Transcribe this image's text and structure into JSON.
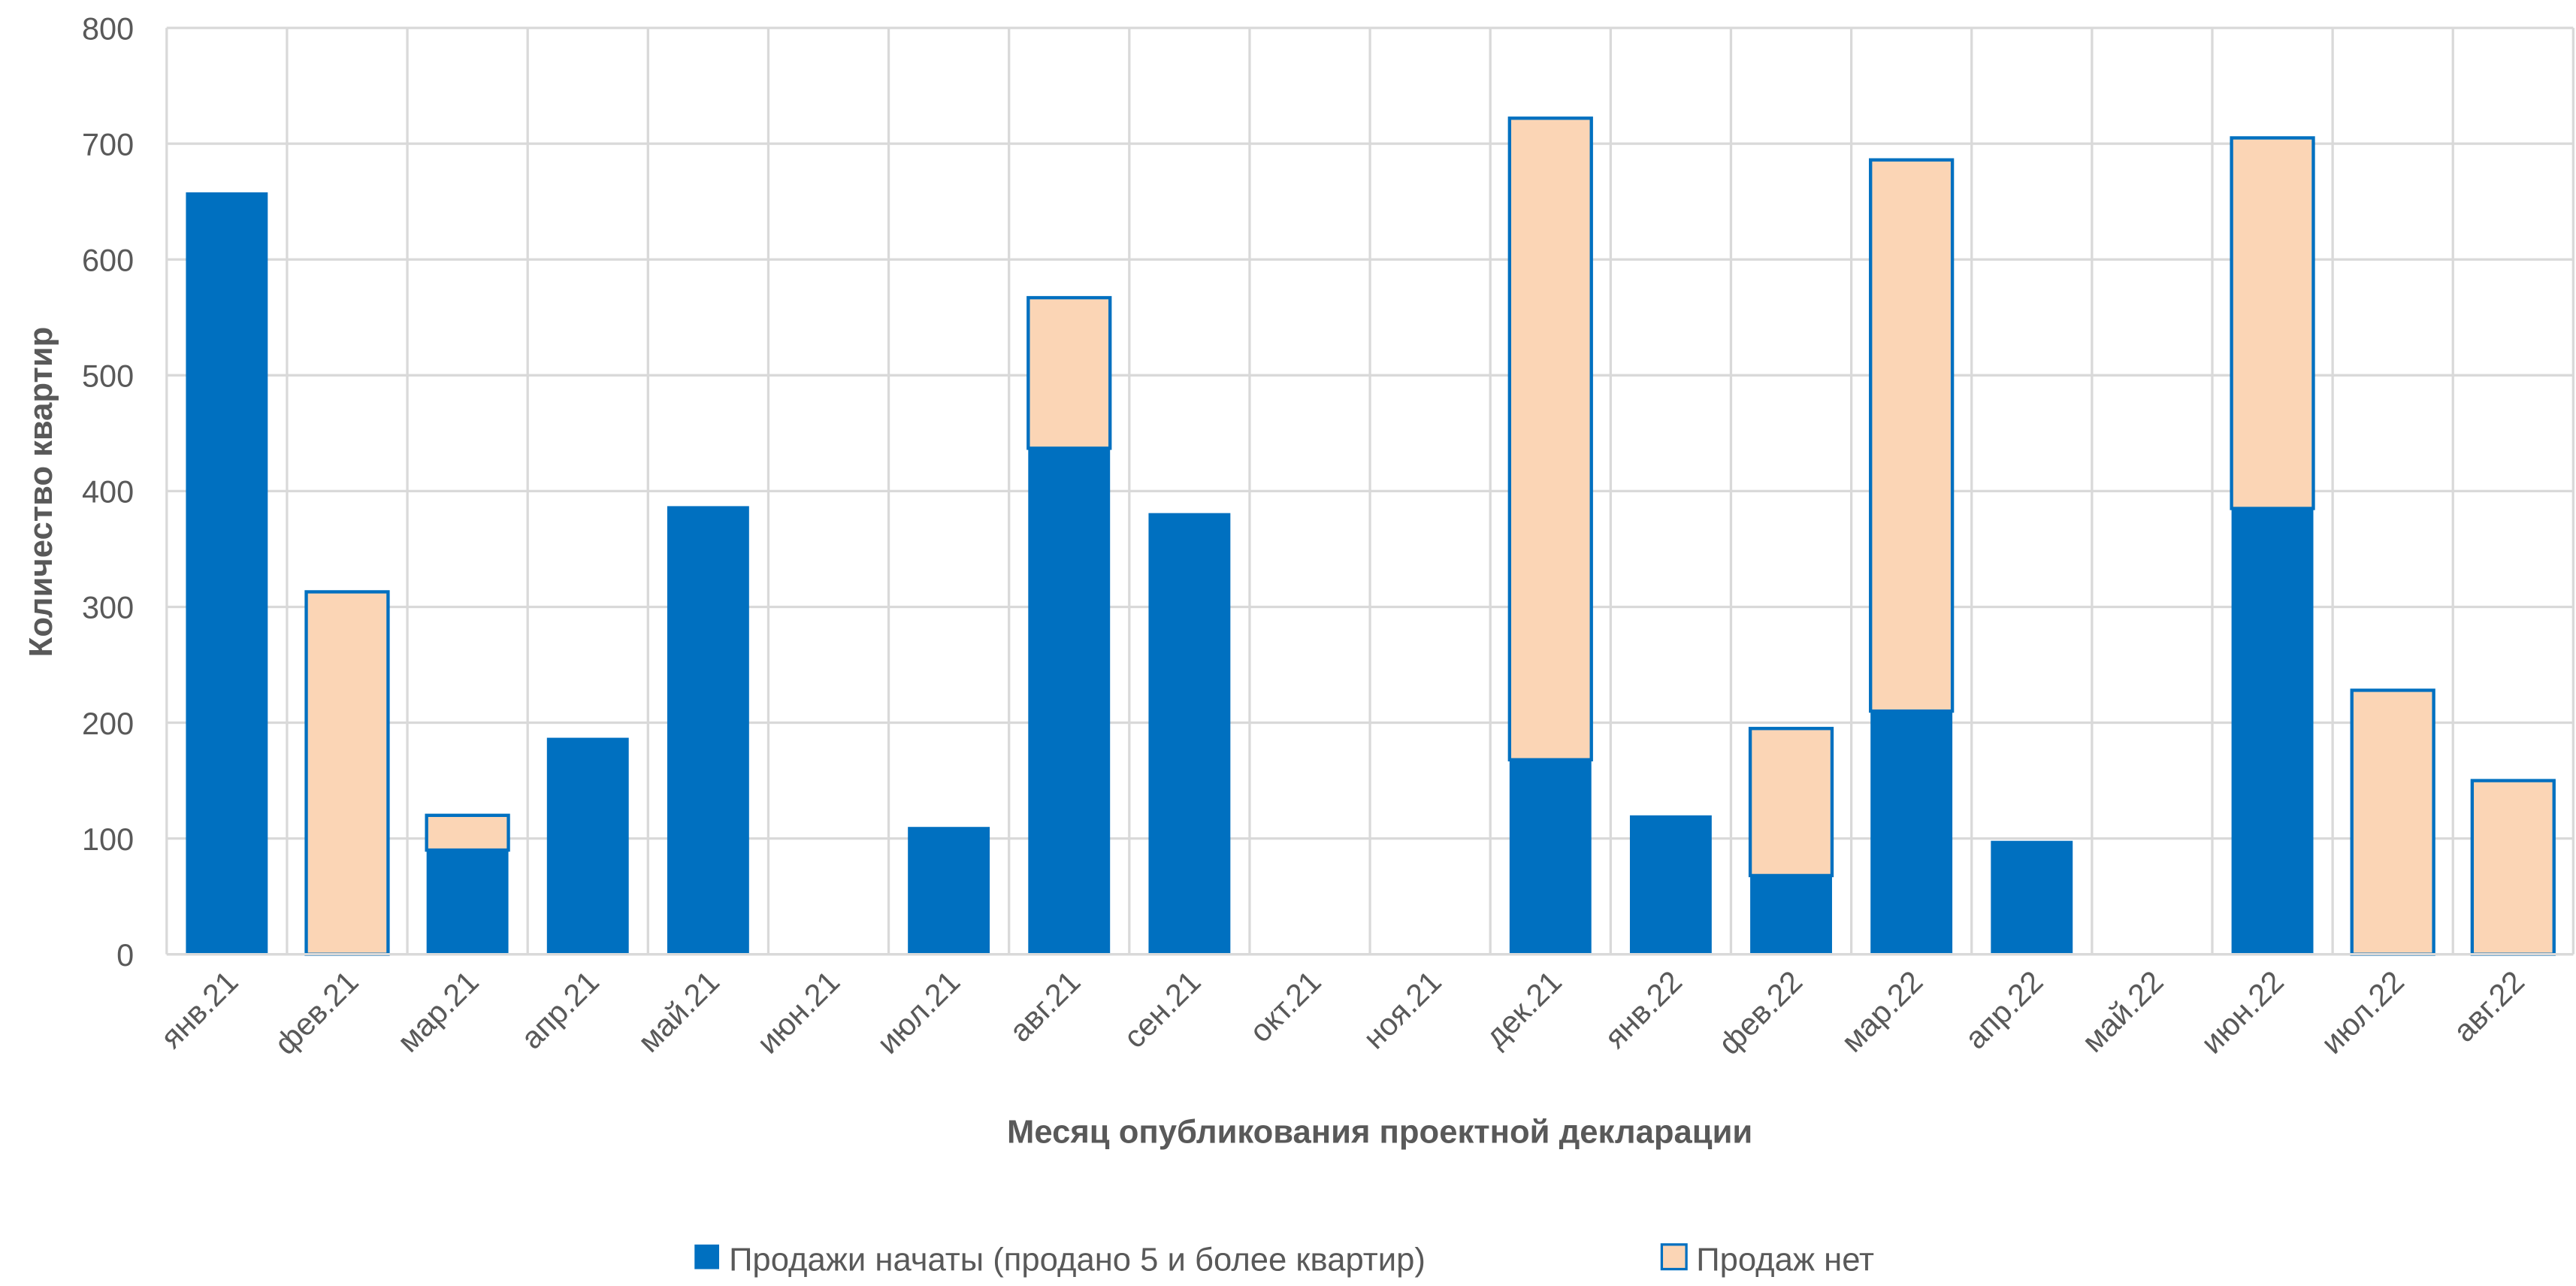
{
  "chart_data": {
    "type": "stacked_bar",
    "x_label": "Месяц опубликования проектной декларации",
    "y_label": "Количество квартир",
    "categories": [
      "янв.21",
      "фев.21",
      "мар.21",
      "апр.21",
      "май.21",
      "июн.21",
      "июл.21",
      "авг.21",
      "сен.21",
      "окт.21",
      "ноя.21",
      "дек.21",
      "янв.22",
      "фев.22",
      "мар.22",
      "апр.22",
      "май.22",
      "июн.22",
      "июл.22",
      "авг.22"
    ],
    "series": [
      {
        "name": "Продажи начаты (продано 5 и более квартир)",
        "color": "#0070c0",
        "values": [
          658,
          0,
          90,
          187,
          387,
          0,
          110,
          437,
          381,
          0,
          0,
          168,
          120,
          68,
          210,
          98,
          0,
          385,
          0,
          0
        ]
      },
      {
        "name": "Продаж нет",
        "color": "#fbd5b5",
        "edge_color": "#0070c0",
        "values": [
          0,
          313,
          30,
          0,
          0,
          0,
          0,
          130,
          0,
          0,
          0,
          554,
          0,
          127,
          476,
          0,
          0,
          320,
          228,
          150
        ]
      }
    ],
    "ylim": [
      0,
      800
    ],
    "yticks": [
      0,
      100,
      200,
      300,
      400,
      500,
      600,
      700,
      800
    ],
    "grid": true,
    "legend": "bottom"
  }
}
